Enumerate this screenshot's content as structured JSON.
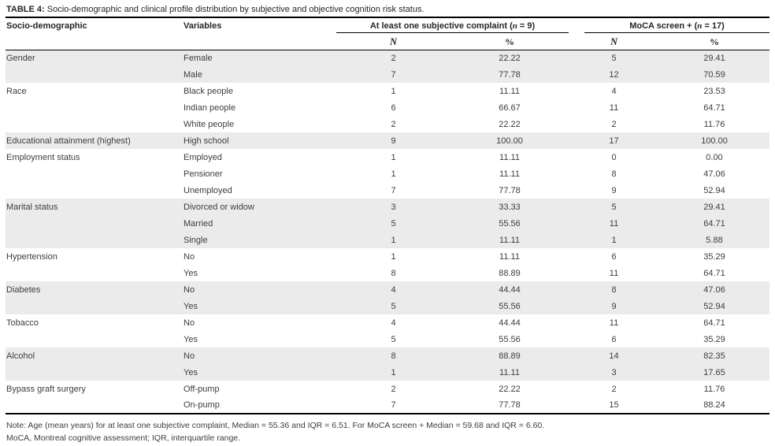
{
  "title": {
    "label": "TABLE 4:",
    "text": " Socio-demographic and clinical profile distribution by subjective and objective cognition risk status."
  },
  "header": {
    "col1": "Socio-demographic",
    "col2": "Variables",
    "group1": {
      "pre": "At least one subjective complaint (",
      "nvar": "n",
      "post": " = 9)"
    },
    "group2": {
      "pre": "MoCA screen + (",
      "nvar": "n",
      "post": " = 17)"
    },
    "sub_n": "N",
    "sub_pct": "%"
  },
  "rows": [
    {
      "category": "Gender",
      "variable": "Female",
      "n1": "2",
      "p1": "22.22",
      "n2": "5",
      "p2": "29.41",
      "shaded": true
    },
    {
      "category": "",
      "variable": "Male",
      "n1": "7",
      "p1": "77.78",
      "n2": "12",
      "p2": "70.59",
      "shaded": true
    },
    {
      "category": "Race",
      "variable": "Black people",
      "n1": "1",
      "p1": "11.11",
      "n2": "4",
      "p2": "23.53",
      "shaded": false
    },
    {
      "category": "",
      "variable": "Indian people",
      "n1": "6",
      "p1": "66.67",
      "n2": "11",
      "p2": "64.71",
      "shaded": false
    },
    {
      "category": "",
      "variable": "White people",
      "n1": "2",
      "p1": "22.22",
      "n2": "2",
      "p2": "11.76",
      "shaded": false
    },
    {
      "category": "Educational attainment (highest)",
      "variable": "High school",
      "n1": "9",
      "p1": "100.00",
      "n2": "17",
      "p2": "100.00",
      "shaded": true
    },
    {
      "category": "Employment status",
      "variable": "Employed",
      "n1": "1",
      "p1": "11.11",
      "n2": "0",
      "p2": "0.00",
      "shaded": false
    },
    {
      "category": "",
      "variable": "Pensioner",
      "n1": "1",
      "p1": "11.11",
      "n2": "8",
      "p2": "47.06",
      "shaded": false
    },
    {
      "category": "",
      "variable": "Unemployed",
      "n1": "7",
      "p1": "77.78",
      "n2": "9",
      "p2": "52.94",
      "shaded": false
    },
    {
      "category": "Marital status",
      "variable": "Divorced or widow",
      "n1": "3",
      "p1": "33.33",
      "n2": "5",
      "p2": "29.41",
      "shaded": true
    },
    {
      "category": "",
      "variable": "Married",
      "n1": "5",
      "p1": "55.56",
      "n2": "11",
      "p2": "64.71",
      "shaded": true
    },
    {
      "category": "",
      "variable": "Single",
      "n1": "1",
      "p1": "11.11",
      "n2": "1",
      "p2": "5.88",
      "shaded": true
    },
    {
      "category": "Hypertension",
      "variable": "No",
      "n1": "1",
      "p1": "11.11",
      "n2": "6",
      "p2": "35.29",
      "shaded": false
    },
    {
      "category": "",
      "variable": "Yes",
      "n1": "8",
      "p1": "88.89",
      "n2": "11",
      "p2": "64.71",
      "shaded": false
    },
    {
      "category": "Diabetes",
      "variable": "No",
      "n1": "4",
      "p1": "44.44",
      "n2": "8",
      "p2": "47.06",
      "shaded": true
    },
    {
      "category": "",
      "variable": "Yes",
      "n1": "5",
      "p1": "55.56",
      "n2": "9",
      "p2": "52.94",
      "shaded": true
    },
    {
      "category": "Tobacco",
      "variable": "No",
      "n1": "4",
      "p1": "44.44",
      "n2": "11",
      "p2": "64.71",
      "shaded": false
    },
    {
      "category": "",
      "variable": "Yes",
      "n1": "5",
      "p1": "55.56",
      "n2": "6",
      "p2": "35.29",
      "shaded": false
    },
    {
      "category": "Alcohol",
      "variable": "No",
      "n1": "8",
      "p1": "88.89",
      "n2": "14",
      "p2": "82.35",
      "shaded": true
    },
    {
      "category": "",
      "variable": "Yes",
      "n1": "1",
      "p1": "11.11",
      "n2": "3",
      "p2": "17.65",
      "shaded": true
    },
    {
      "category": "Bypass graft surgery",
      "variable": "Off-pump",
      "n1": "2",
      "p1": "22.22",
      "n2": "2",
      "p2": "11.76",
      "shaded": false
    },
    {
      "category": "",
      "variable": "On-pump",
      "n1": "7",
      "p1": "77.78",
      "n2": "15",
      "p2": "88.24",
      "shaded": false
    }
  ],
  "notes": [
    "Note: Age (mean years) for at least one subjective complaint, Median = 55.36 and IQR = 6.51. For MoCA screen + Median = 59.68 and IQR = 6.60.",
    "MoCA, Montreal cognitive assessment; IQR, interquartile range."
  ],
  "colors": {
    "row_shade": "#ebebeb",
    "rule": "#000000",
    "text": "#3d3d3d"
  }
}
